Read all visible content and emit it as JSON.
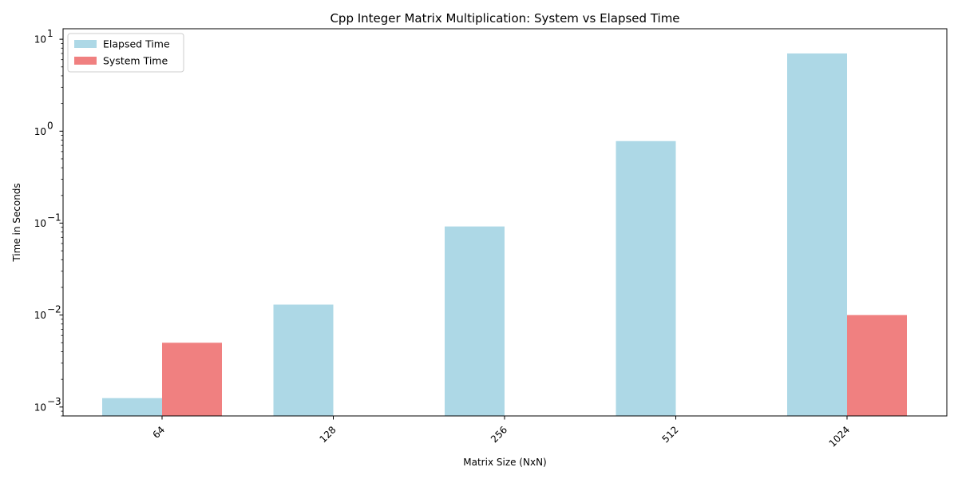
{
  "chart_data": {
    "type": "bar",
    "title": "Cpp Integer Matrix Multiplication: System vs Elapsed Time",
    "xlabel": "Matrix Size (NxN)",
    "ylabel": "Time in Seconds",
    "categories": [
      "64",
      "128",
      "256",
      "512",
      "1024"
    ],
    "yscale": "log",
    "ylim": [
      0.0008,
      13
    ],
    "y_ticks": [
      {
        "base": "10",
        "exp": "−3"
      },
      {
        "base": "10",
        "exp": "−2"
      },
      {
        "base": "10",
        "exp": "−1"
      },
      {
        "base": "10",
        "exp": "0"
      },
      {
        "base": "10",
        "exp": "1"
      }
    ],
    "series": [
      {
        "name": "Elapsed Time",
        "color": "#add8e6",
        "values": [
          0.00125,
          0.013,
          0.092,
          0.78,
          7.0
        ]
      },
      {
        "name": "System Time",
        "color": "#f08080",
        "values": [
          0.005,
          null,
          null,
          null,
          0.01
        ]
      }
    ],
    "legend_position": "top-left",
    "grid": false,
    "x_tick_rotation": "45°"
  }
}
